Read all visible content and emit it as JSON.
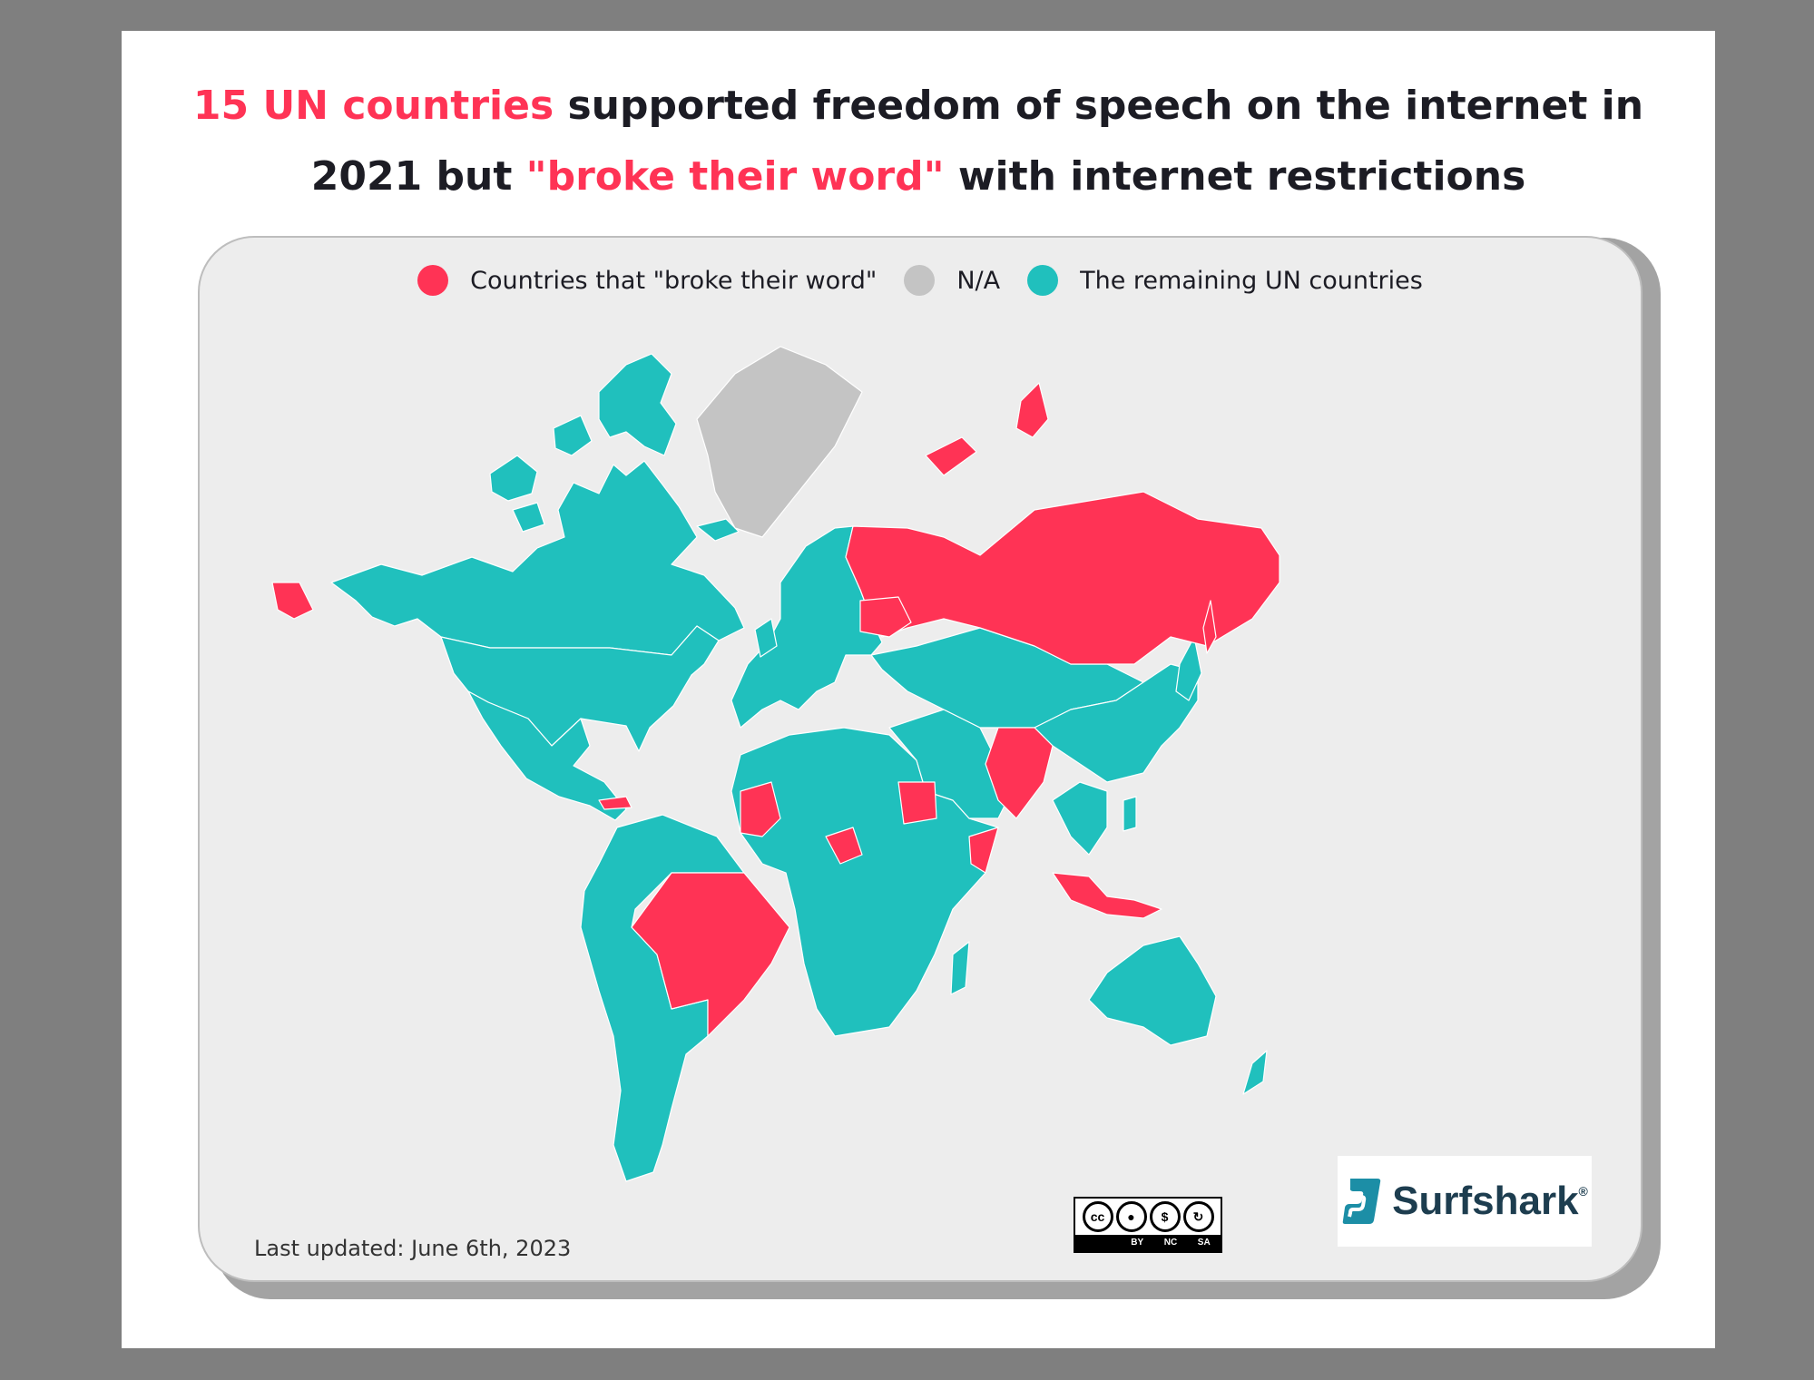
{
  "title": {
    "line1_highlight": "15 UN countries",
    "line1_rest": " supported freedom of speech on the internet in",
    "line2_start": "2021 but ",
    "line2_highlight": "\"broke their word\"",
    "line2_end": " with internet restrictions"
  },
  "legend": [
    {
      "label": "Countries that \"broke their word\"",
      "color": "#ff3355"
    },
    {
      "label": "N/A",
      "color": "#c4c4c4"
    },
    {
      "label": "The remaining UN countries",
      "color": "#20c0bd"
    }
  ],
  "colors": {
    "highlight": "#ff3355",
    "na": "#c4c4c4",
    "remaining": "#20c0bd",
    "background": "#ededed"
  },
  "footer": {
    "last_updated": "Last updated: June 6th, 2023"
  },
  "license": {
    "cc": "cc",
    "badges": [
      "BY",
      "NC",
      "SA"
    ]
  },
  "brand": {
    "name": "Surfshark",
    "registered": "®",
    "logo_icon": "surfshark-s-icon"
  }
}
